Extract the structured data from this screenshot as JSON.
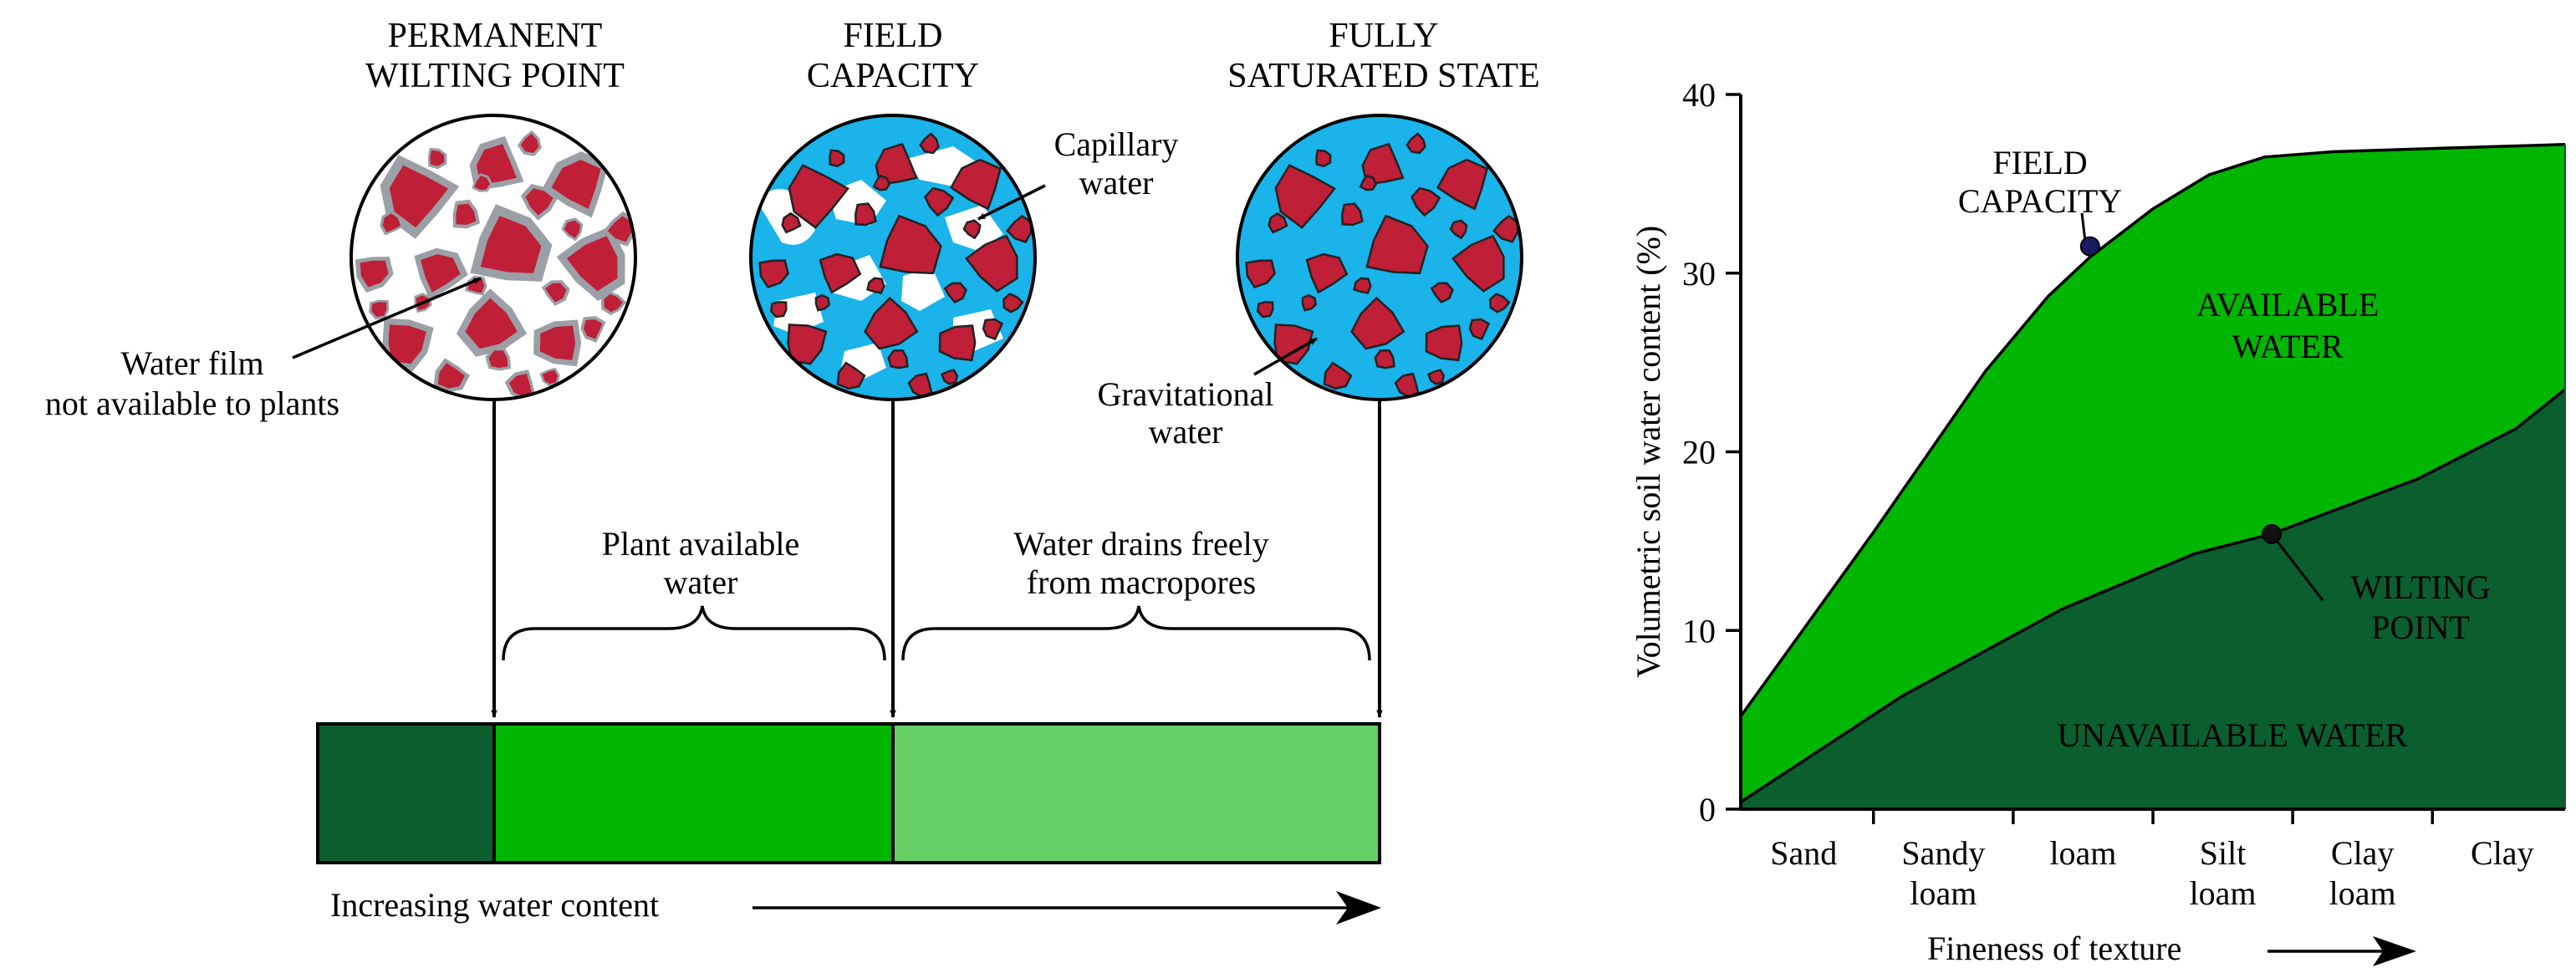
{
  "states": [
    {
      "title_line1": "PERMANENT",
      "title_line2": "WILTING POINT"
    },
    {
      "title_line1": "FIELD",
      "title_line2": "CAPACITY"
    },
    {
      "title_line1": "FULLY",
      "title_line2": "SATURATED STATE"
    }
  ],
  "annotations": {
    "water_film_line1": "Water film",
    "water_film_line2": "not available to plants",
    "capillary_line1": "Capillary",
    "capillary_line2": "water",
    "gravitational_line1": "Gravitational",
    "gravitational_line2": "water",
    "plant_available_line1": "Plant available",
    "plant_available_line2": "water",
    "drains_line1": "Water drains freely",
    "drains_line2": "from macropores",
    "increasing": "Increasing water content"
  },
  "colors": {
    "soil_particle": "#bf1f37",
    "water_blue": "#1ab3ea",
    "film_gray": "#9aa0a6",
    "unavailable_dark": "#0b5e2e",
    "available_bright": "#00b600",
    "drainage_light": "#66d066"
  },
  "chart_data": {
    "type": "area",
    "categories": [
      "Sand",
      "Sandy loam",
      "loam",
      "Silt loam",
      "Clay loam",
      "Clay"
    ],
    "tick_lines": [
      [
        "Sand"
      ],
      [
        "Sandy",
        "loam"
      ],
      [
        "loam"
      ],
      [
        "Silt",
        "loam"
      ],
      [
        "Clay",
        "loam"
      ],
      [
        "Clay"
      ]
    ],
    "ylabel": "Volumetric soil water content (%)",
    "xlabel": "Fineness of texture",
    "ylim": [
      0,
      40
    ],
    "yticks": [
      0,
      10,
      20,
      30,
      40
    ],
    "x_range": [
      -0.45,
      5.45
    ],
    "field_capacity_curve": [
      [
        -0.45,
        5.2
      ],
      [
        0.5,
        15.5
      ],
      [
        1.3,
        24.5
      ],
      [
        1.75,
        28.7
      ],
      [
        2.05,
        30.9
      ],
      [
        2.5,
        33.6
      ],
      [
        2.9,
        35.5
      ],
      [
        3.3,
        36.5
      ],
      [
        3.8,
        36.8
      ],
      [
        4.6,
        37.0
      ],
      [
        5.45,
        37.2
      ]
    ],
    "wilting_point_curve": [
      [
        -0.45,
        0.4
      ],
      [
        0.7,
        6.3
      ],
      [
        1.85,
        11.2
      ],
      [
        2.8,
        14.3
      ],
      [
        3.35,
        15.4
      ],
      [
        4.4,
        18.5
      ],
      [
        5.1,
        21.3
      ],
      [
        5.45,
        23.5
      ]
    ],
    "series": [
      {
        "name": "FIELD CAPACITY",
        "marker": [
          2.05,
          31.5
        ]
      },
      {
        "name": "WILTING POINT",
        "marker": [
          3.35,
          15.4
        ]
      }
    ],
    "region_labels": {
      "available_line1": "AVAILABLE",
      "available_line2": "WATER",
      "unavailable": "UNAVAILABLE WATER"
    },
    "point_labels": {
      "fc_line1": "FIELD",
      "fc_line2": "CAPACITY",
      "wp_line1": "WILTING",
      "wp_line2": "POINT"
    },
    "grid": false,
    "legend": "none"
  }
}
